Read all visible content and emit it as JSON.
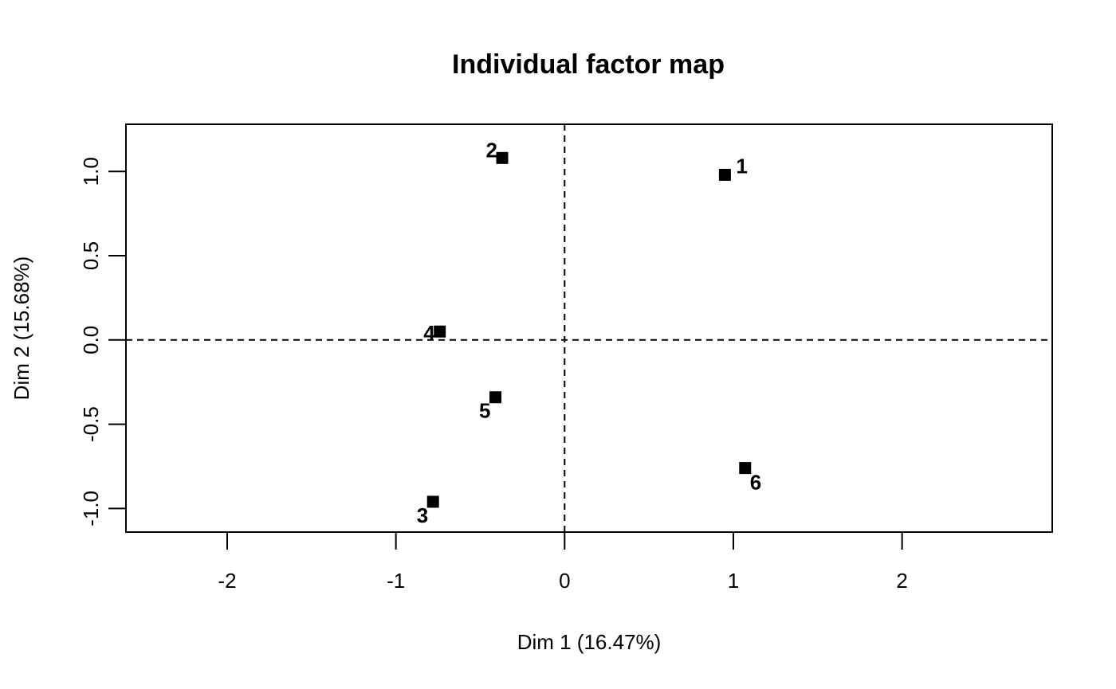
{
  "chart_data": {
    "type": "scatter",
    "title": "Individual factor map",
    "xlabel": "Dim 1 (16.47%)",
    "ylabel": "Dim 2 (15.68%)",
    "xlim": [
      -2.6,
      2.89
    ],
    "ylim": [
      -1.14,
      1.28
    ],
    "xticks": [
      -2,
      -1,
      0,
      1,
      2
    ],
    "yticks": [
      -1.0,
      -0.5,
      0.0,
      0.5,
      1.0
    ],
    "xtick_labels": [
      "-2",
      "-1",
      "0",
      "1",
      "2"
    ],
    "ytick_labels": [
      "-1.0",
      "-0.5",
      "0.0",
      "0.5",
      "1.0"
    ],
    "reference_lines": {
      "x": 0,
      "y": 0,
      "style": "dashed"
    },
    "grid": false,
    "points": [
      {
        "label": "1",
        "x": 0.95,
        "y": 0.98,
        "label_pos": "upper-right"
      },
      {
        "label": "2",
        "x": -0.37,
        "y": 1.08,
        "label_pos": "upper-left"
      },
      {
        "label": "3",
        "x": -0.78,
        "y": -0.96,
        "label_pos": "lower-left"
      },
      {
        "label": "4",
        "x": -0.74,
        "y": 0.05,
        "label_pos": "left"
      },
      {
        "label": "5",
        "x": -0.41,
        "y": -0.34,
        "label_pos": "lower-left"
      },
      {
        "label": "6",
        "x": 1.07,
        "y": -0.76,
        "label_pos": "lower-right"
      }
    ]
  }
}
